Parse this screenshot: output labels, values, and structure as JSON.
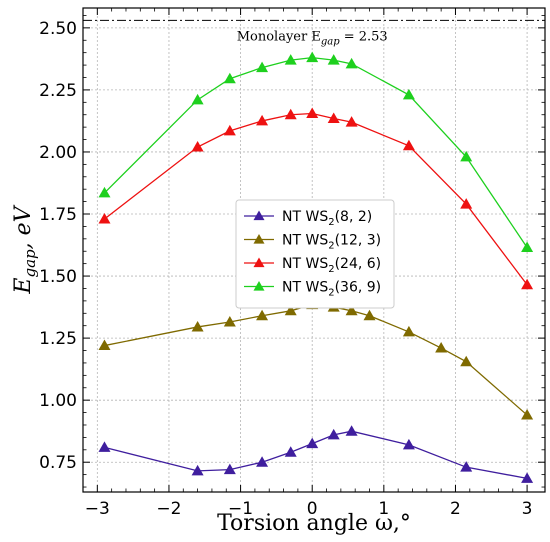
{
  "chart_data": {
    "type": "line",
    "xlabel": "Torsion angle ω,°",
    "ylabel_main": "E",
    "ylabel_sub": "gap",
    "ylabel_rest": ", eV",
    "xlim": [
      -3.2,
      3.25
    ],
    "ylim": [
      0.63,
      2.58
    ],
    "xticks": [
      -3,
      -2,
      -1,
      0,
      1,
      2,
      3
    ],
    "xtick_labels": [
      "−3",
      "−2",
      "−1",
      "0",
      "1",
      "2",
      "3"
    ],
    "yticks": [
      0.75,
      1.0,
      1.25,
      1.5,
      1.75,
      2.0,
      2.25,
      2.5
    ],
    "ytick_labels": [
      "0.75",
      "1.00",
      "1.25",
      "1.50",
      "1.75",
      "2.00",
      "2.25",
      "2.50"
    ],
    "grid": true,
    "legend_position": "center",
    "reference_line": {
      "y": 2.53,
      "label_main": "Monolayer E",
      "label_sub": "gap",
      "label_rest": " = 2.53"
    },
    "series": [
      {
        "name": "NT WS",
        "name_sub": "2",
        "name_rest": "(8, 2)",
        "color": "#3f1e9e",
        "x": [
          -2.9,
          -1.6,
          -1.15,
          -0.7,
          -0.3,
          0.0,
          0.3,
          0.55,
          1.35,
          2.15,
          3.0
        ],
        "y": [
          0.81,
          0.715,
          0.72,
          0.75,
          0.79,
          0.825,
          0.86,
          0.875,
          0.82,
          0.73,
          0.685
        ]
      },
      {
        "name": "NT WS",
        "name_sub": "2",
        "name_rest": "(12, 3)",
        "color": "#7f6a00",
        "x": [
          -2.9,
          -1.6,
          -1.15,
          -0.7,
          -0.3,
          0.0,
          0.3,
          0.55,
          0.8,
          1.35,
          1.8,
          2.15,
          3.0
        ],
        "y": [
          1.22,
          1.295,
          1.315,
          1.34,
          1.36,
          1.385,
          1.375,
          1.36,
          1.34,
          1.275,
          1.21,
          1.155,
          0.94
        ]
      },
      {
        "name": "NT WS",
        "name_sub": "2",
        "name_rest": "(24, 6)",
        "color": "#ee1111",
        "x": [
          -2.9,
          -1.6,
          -1.15,
          -0.7,
          -0.3,
          0.0,
          0.3,
          0.55,
          1.35,
          2.15,
          3.0
        ],
        "y": [
          1.73,
          2.02,
          2.085,
          2.125,
          2.15,
          2.155,
          2.135,
          2.12,
          2.025,
          1.79,
          1.465
        ]
      },
      {
        "name": "NT WS",
        "name_sub": "2",
        "name_rest": "(36, 9)",
        "color": "#1ed01e",
        "x": [
          -2.9,
          -1.6,
          -1.15,
          -0.7,
          -0.3,
          0.0,
          0.3,
          0.55,
          1.35,
          2.15,
          3.0
        ],
        "y": [
          1.835,
          2.21,
          2.295,
          2.34,
          2.37,
          2.38,
          2.37,
          2.355,
          2.23,
          1.98,
          1.615
        ]
      }
    ]
  }
}
